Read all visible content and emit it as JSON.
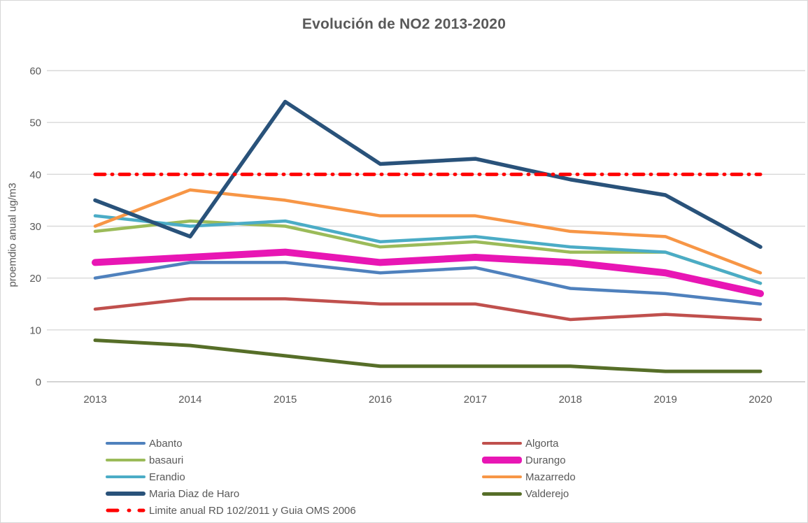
{
  "chart_data": {
    "type": "line",
    "title": "Evolución de NO2 2013-2020",
    "ylabel": "proemdio anual ug/m3",
    "xlabel": "",
    "ylim": [
      0,
      60
    ],
    "yticks": [
      0,
      10,
      20,
      30,
      40,
      50,
      60
    ],
    "grid": "horizontal",
    "legend_position": "bottom-two-columns",
    "categories": [
      "2013",
      "2014",
      "2015",
      "2016",
      "2017",
      "2018",
      "2019",
      "2020"
    ],
    "series": [
      {
        "name": "Abanto",
        "color": "#4F81BD",
        "width": 4.5,
        "dash": false,
        "values": [
          20,
          23,
          23,
          21,
          22,
          18,
          17,
          15
        ]
      },
      {
        "name": "Algorta",
        "color": "#C0504D",
        "width": 4.5,
        "dash": false,
        "values": [
          14,
          16,
          16,
          15,
          15,
          12,
          13,
          12
        ]
      },
      {
        "name": "basauri",
        "color": "#9BBB59",
        "width": 4.5,
        "dash": false,
        "values": [
          29,
          31,
          30,
          26,
          27,
          25,
          25,
          19
        ]
      },
      {
        "name": "Durango",
        "color": "#E816B4",
        "width": 10,
        "dash": false,
        "values": [
          23,
          24,
          25,
          23,
          24,
          23,
          21,
          17
        ]
      },
      {
        "name": "Erandio",
        "color": "#4BACC6",
        "width": 4.5,
        "dash": false,
        "values": [
          32,
          30,
          31,
          27,
          28,
          26,
          25,
          19
        ]
      },
      {
        "name": "Mazarredo",
        "color": "#F79646",
        "width": 4.5,
        "dash": false,
        "values": [
          30,
          37,
          35,
          32,
          32,
          29,
          28,
          21
        ]
      },
      {
        "name": "Maria Diaz de Haro",
        "color": "#29527A",
        "width": 5.5,
        "dash": false,
        "values": [
          35,
          28,
          54,
          42,
          43,
          39,
          36,
          26
        ]
      },
      {
        "name": "Valderejo",
        "color": "#566E28",
        "width": 5,
        "dash": false,
        "values": [
          8,
          7,
          5,
          3,
          3,
          3,
          2,
          2
        ]
      },
      {
        "name": "Limite anual RD 102/2011 y Guia OMS 2006",
        "color": "#FF0000",
        "width": 5,
        "dash": true,
        "values": [
          40,
          40,
          40,
          40,
          40,
          40,
          40,
          40
        ]
      }
    ],
    "annotations": {
      "limit_value": 40
    },
    "colors": {
      "text": "#595959",
      "gridline": "#D9D9D9",
      "axis_line": "#C6C6C6"
    }
  }
}
